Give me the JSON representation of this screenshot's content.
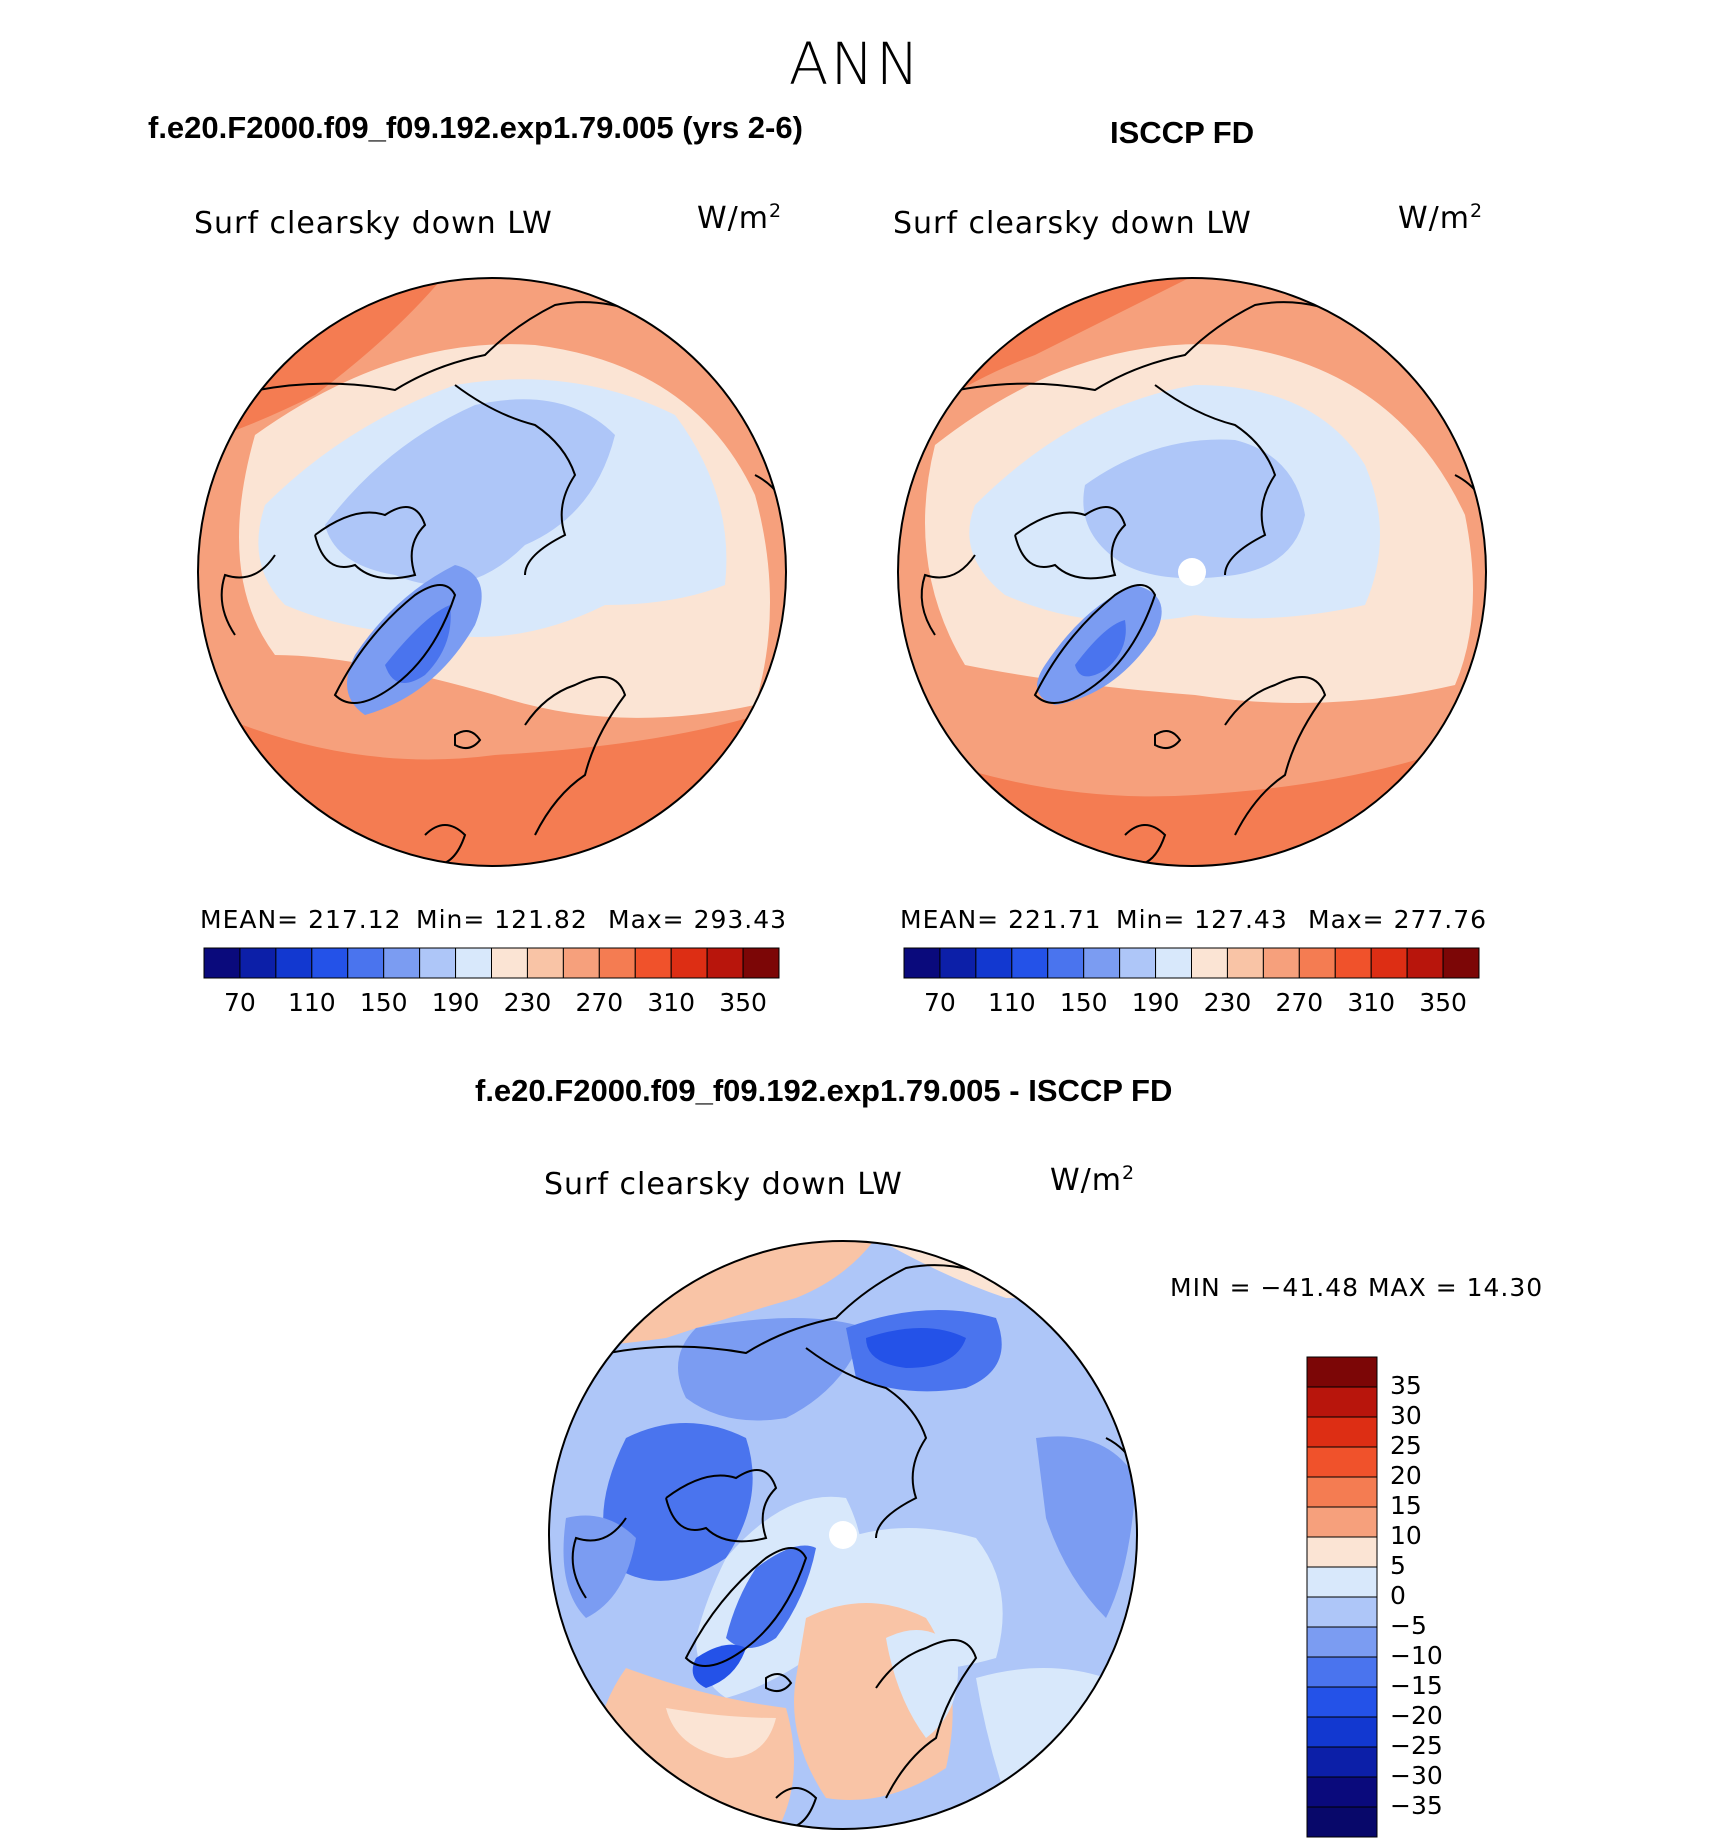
{
  "figure_title": "ANN",
  "panels": [
    {
      "case_title": "f.e20.F2000.f09_f09.192.exp1.79.005 (yrs 2-6)",
      "variable": "Surf clearsky down LW",
      "units": "W/m",
      "units_sup": "2",
      "stats": {
        "mean": "MEAN= 217.12",
        "min": "Min= 121.82",
        "max": "Max= 293.43"
      }
    },
    {
      "case_title": "ISCCP FD",
      "variable": "Surf clearsky down LW",
      "units": "W/m",
      "units_sup": "2",
      "stats": {
        "mean": "MEAN= 221.71",
        "min": "Min= 127.43",
        "max": "Max= 277.76"
      }
    },
    {
      "case_title": "f.e20.F2000.f09_f09.192.exp1.79.005 - ISCCP FD",
      "variable": "Surf clearsky down LW",
      "units": "W/m",
      "units_sup": "2",
      "stats": {
        "minmax": "MIN = −41.48 MAX =   14.30"
      }
    }
  ],
  "abs_colorbar": {
    "ticks": [
      "70",
      "110",
      "150",
      "190",
      "230",
      "270",
      "310",
      "350"
    ],
    "colors": [
      "#0a0a7c",
      "#0c1fa8",
      "#1238d0",
      "#2452e8",
      "#4a74ee",
      "#7b9cf2",
      "#aec6f8",
      "#d8e8fb",
      "#fbe4d4",
      "#f9c4a6",
      "#f6a07c",
      "#f47c52",
      "#f0522b",
      "#dd2e14",
      "#b8150c",
      "#7c0606"
    ]
  },
  "diff_colorbar": {
    "ticks": [
      "35",
      "30",
      "25",
      "20",
      "15",
      "10",
      "5",
      "0",
      "−5",
      "−10",
      "−15",
      "−20",
      "−25",
      "−30",
      "−35"
    ],
    "colors": [
      "#7c0606",
      "#b8150c",
      "#dd2e14",
      "#f0522b",
      "#f47c52",
      "#f6a07c",
      "#fbe4d4",
      "#d8e8fb",
      "#aec6f8",
      "#7b9cf2",
      "#4a74ee",
      "#2452e8",
      "#1238d0",
      "#0c1fa8",
      "#0a0a7c",
      "#08086a"
    ]
  }
}
